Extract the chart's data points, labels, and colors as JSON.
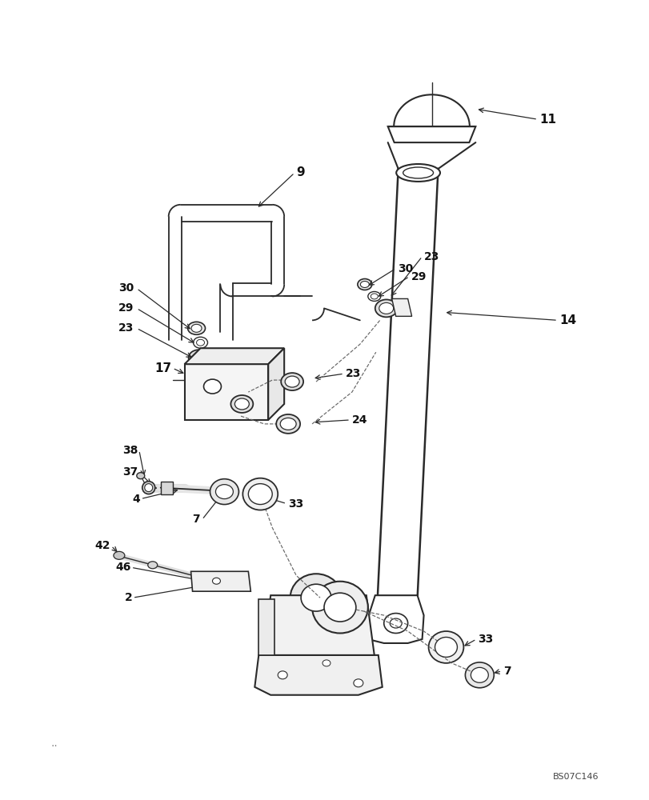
{
  "background_color": "#ffffff",
  "image_code": "BS07C146",
  "lc": "#2a2a2a",
  "lc_thin": "#444444",
  "label_color": "#111111"
}
